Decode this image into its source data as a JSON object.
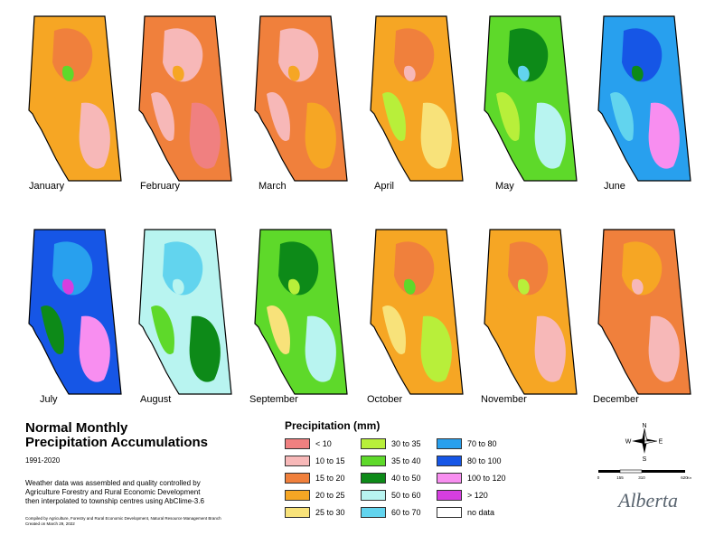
{
  "title_line1": "Normal Monthly",
  "title_line2": "Precipitation Accumulations",
  "years": "1991-2020",
  "description": [
    "Weather data was assembled and quality controlled by",
    "Agriculture Forestry and Rural Economic Development",
    "then interpolated to township centres using AbClime-3.6"
  ],
  "credits": [
    "Compiled by Agriculture, Forestry and Rural Economic Development, Natural Resource Management Branch",
    "Created on March 29, 2022"
  ],
  "legend": {
    "title": "Precipitation (mm)",
    "items": [
      {
        "label": "< 10",
        "color": "#f08080"
      },
      {
        "label": "10 to 15",
        "color": "#f7b8b8"
      },
      {
        "label": "15 to 20",
        "color": "#f0803c"
      },
      {
        "label": "20 to 25",
        "color": "#f6a624"
      },
      {
        "label": "25 to 30",
        "color": "#f8e27a"
      },
      {
        "label": "30 to 35",
        "color": "#b8ef3a"
      },
      {
        "label": "35 to 40",
        "color": "#5ed92a"
      },
      {
        "label": "40 to 50",
        "color": "#0d8a18"
      },
      {
        "label": "50 to  60",
        "color": "#b8f4f0"
      },
      {
        "label": "60 to 70",
        "color": "#62d4ee"
      },
      {
        "label": "70 to 80",
        "color": "#28a0ee"
      },
      {
        "label": "80 to 100",
        "color": "#1656e6"
      },
      {
        "label": "100 to 120",
        "color": "#f88ef0"
      },
      {
        "label": "> 120",
        "color": "#d63ee0"
      },
      {
        "label": "no data",
        "color": "#ffffff"
      }
    ]
  },
  "months": [
    {
      "name": "January",
      "base": "#f6a624",
      "blobs": [
        "#f0803c",
        "#f7b8b8",
        "#f6a624",
        "#5ed92a"
      ]
    },
    {
      "name": "February",
      "base": "#f0803c",
      "blobs": [
        "#f7b8b8",
        "#f08080",
        "#f7b8b8",
        "#f6a624"
      ]
    },
    {
      "name": "March",
      "base": "#f0803c",
      "blobs": [
        "#f7b8b8",
        "#f6a624",
        "#f7b8b8",
        "#f6a624"
      ]
    },
    {
      "name": "April",
      "base": "#f6a624",
      "blobs": [
        "#f0803c",
        "#f8e27a",
        "#b8ef3a",
        "#f7b8b8"
      ]
    },
    {
      "name": "May",
      "base": "#5ed92a",
      "blobs": [
        "#0d8a18",
        "#b8f4f0",
        "#b8ef3a",
        "#62d4ee"
      ]
    },
    {
      "name": "June",
      "base": "#28a0ee",
      "blobs": [
        "#1656e6",
        "#f88ef0",
        "#62d4ee",
        "#0d8a18"
      ]
    },
    {
      "name": "July",
      "base": "#1656e6",
      "blobs": [
        "#28a0ee",
        "#f88ef0",
        "#0d8a18",
        "#d63ee0"
      ]
    },
    {
      "name": "August",
      "base": "#b8f4f0",
      "blobs": [
        "#62d4ee",
        "#0d8a18",
        "#5ed92a",
        "#b8f4f0"
      ]
    },
    {
      "name": "September",
      "base": "#5ed92a",
      "blobs": [
        "#0d8a18",
        "#b8f4f0",
        "#f8e27a",
        "#b8ef3a"
      ]
    },
    {
      "name": "October",
      "base": "#f6a624",
      "blobs": [
        "#f0803c",
        "#b8ef3a",
        "#f8e27a",
        "#5ed92a"
      ]
    },
    {
      "name": "November",
      "base": "#f6a624",
      "blobs": [
        "#f0803c",
        "#f7b8b8",
        "#f6a624",
        "#b8ef3a"
      ]
    },
    {
      "name": "December",
      "base": "#f0803c",
      "blobs": [
        "#f6a624",
        "#f7b8b8",
        "#f0803c",
        "#f7b8b8"
      ]
    }
  ],
  "compass": {
    "n": "N",
    "s": "S",
    "e": "E",
    "w": "W"
  },
  "scale": {
    "ticks": [
      "0",
      "155",
      "310",
      "620"
    ],
    "unit": "Km"
  },
  "logo": "Alberta"
}
